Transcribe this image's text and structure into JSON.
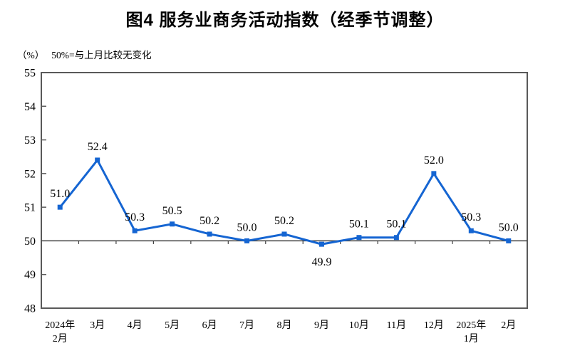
{
  "figure": {
    "title": "图4  服务业商务活动指数（经季节调整）",
    "unit_label": "（%）",
    "reference_note": "50%=与上月比较无变化"
  },
  "colors": {
    "series_line": "#1565d2",
    "marker": "#1565d2",
    "plot_border": "#595959",
    "reference_line": "#404040",
    "text": "#000000"
  },
  "chart_data": {
    "type": "line",
    "title": "图4 服务业商务活动指数（经季节调整）",
    "unit": "%",
    "categories": [
      "2024年\n2月",
      "3月",
      "4月",
      "5月",
      "6月",
      "7月",
      "8月",
      "9月",
      "10月",
      "11月",
      "12月",
      "2025年\n1月",
      "2月"
    ],
    "values": [
      51.0,
      52.4,
      50.3,
      50.5,
      50.2,
      50.0,
      50.2,
      49.9,
      50.1,
      50.1,
      52.0,
      50.3,
      50.0
    ],
    "ylim": [
      48,
      55
    ],
    "yticks": [
      48,
      49,
      50,
      51,
      52,
      53,
      54,
      55
    ],
    "reference_line": 50,
    "grid": false,
    "legend": false,
    "value_label_decimals": 1,
    "value_labels_below_indices": [
      7
    ]
  }
}
